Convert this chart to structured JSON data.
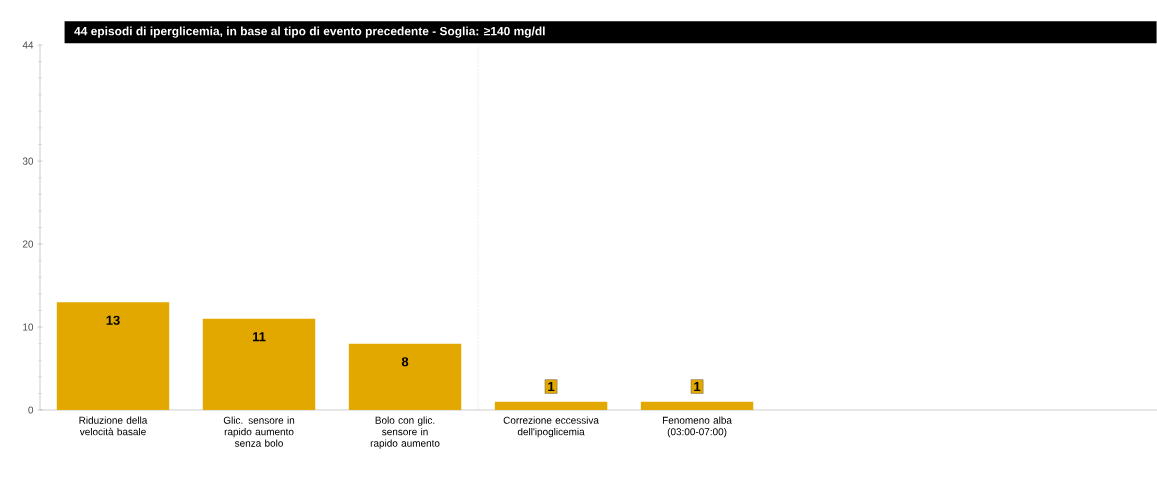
{
  "chart_data": {
    "type": "bar",
    "title": "44 episodi di iperglicemia, in base al tipo di evento precedente   -   Soglia: ≥140 mg/dl",
    "categories": [
      "Riduzione della velocità basale",
      "Glic. sensore in rapido aumento senza bolo",
      "Bolo con glic. sensore in rapido aumento",
      "Correzione eccessiva dell'ipoglicemia",
      "Fenomeno alba (03:00-07:00)"
    ],
    "values": [
      13,
      11,
      8,
      1,
      1
    ],
    "color": "#e2a800",
    "ylim": [
      0,
      44
    ],
    "yticks": [
      0,
      10,
      20,
      30,
      44
    ],
    "data_labels": true
  }
}
